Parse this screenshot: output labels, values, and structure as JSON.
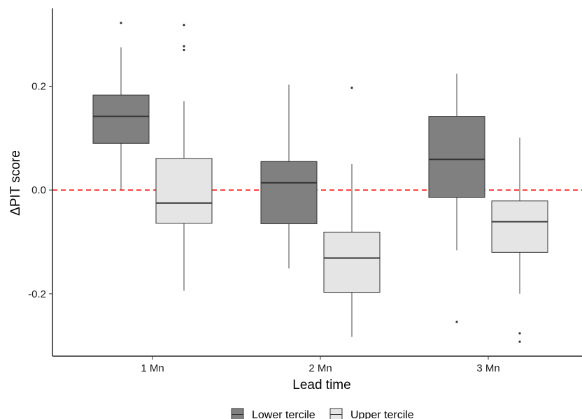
{
  "chart_data": {
    "type": "boxplot",
    "title": "",
    "xlabel": "Lead time",
    "ylabel": "ΔPIT score",
    "categories": [
      "1 Mn",
      "2 Mn",
      "3 Mn"
    ],
    "yticks": [
      "0.2",
      "0.0",
      "-0.2"
    ],
    "ytick_values": [
      0.2,
      0.0,
      -0.2
    ],
    "ylim": [
      -0.32,
      0.35
    ],
    "reference_line": {
      "y": 0.0,
      "color": "#ff0000",
      "style": "dashed"
    },
    "grid": false,
    "legend_position": "bottom",
    "series": [
      {
        "name": "Lower tercile",
        "color": "#808080",
        "boxes": [
          {
            "category": "1 Mn",
            "whisker_low": 0.0,
            "q1": 0.09,
            "median": 0.142,
            "q3": 0.183,
            "whisker_high": 0.275,
            "outliers": [
              0.322
            ]
          },
          {
            "category": "2 Mn",
            "whisker_low": -0.151,
            "q1": -0.065,
            "median": 0.014,
            "q3": 0.055,
            "whisker_high": 0.203,
            "outliers": []
          },
          {
            "category": "3 Mn",
            "whisker_low": -0.116,
            "q1": -0.014,
            "median": 0.059,
            "q3": 0.142,
            "whisker_high": 0.224,
            "outliers": [
              -0.254
            ]
          }
        ]
      },
      {
        "name": "Upper tercile",
        "color": "#e5e5e5",
        "boxes": [
          {
            "category": "1 Mn",
            "whisker_low": -0.194,
            "q1": -0.064,
            "median": -0.025,
            "q3": 0.061,
            "whisker_high": 0.171,
            "outliers": [
              0.318,
              0.277,
              0.27
            ]
          },
          {
            "category": "2 Mn",
            "whisker_low": -0.283,
            "q1": -0.197,
            "median": -0.131,
            "q3": -0.081,
            "whisker_high": 0.05,
            "outliers": [
              0.197
            ]
          },
          {
            "category": "3 Mn",
            "whisker_low": -0.2,
            "q1": -0.12,
            "median": -0.061,
            "q3": -0.021,
            "whisker_high": 0.101,
            "outliers": [
              -0.276,
              -0.292
            ]
          }
        ]
      }
    ]
  }
}
